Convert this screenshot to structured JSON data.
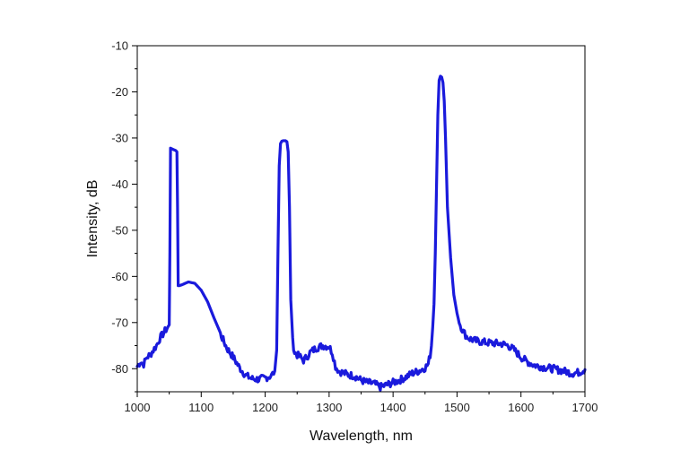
{
  "chart_data": {
    "type": "line",
    "title": "",
    "xlabel": "Wavelength, nm",
    "ylabel": "Intensity, dB",
    "xlim": [
      1000,
      1700
    ],
    "ylim": [
      -85,
      -10
    ],
    "xticks": [
      1000,
      1100,
      1200,
      1300,
      1400,
      1500,
      1600,
      1700
    ],
    "xtick_labels": [
      "1000",
      "1100",
      "1200",
      "1300",
      "1400",
      "1500",
      "1600",
      "1700"
    ],
    "yticks": [
      -80,
      -70,
      -60,
      -50,
      -40,
      -30,
      -20,
      -10
    ],
    "ytick_labels": [
      "-80",
      "-70",
      "-60",
      "-50",
      "-40",
      "-30",
      "-20",
      "-10"
    ],
    "grid": false,
    "series": [
      {
        "name": "spectrum",
        "color": "#1a1adc",
        "x": [
          1000,
          1005,
          1010,
          1015,
          1020,
          1025,
          1030,
          1035,
          1040,
          1045,
          1048,
          1050,
          1051,
          1052,
          1055,
          1058,
          1060,
          1062,
          1063,
          1064,
          1066,
          1070,
          1080,
          1090,
          1100,
          1110,
          1120,
          1130,
          1140,
          1150,
          1160,
          1170,
          1180,
          1190,
          1200,
          1210,
          1215,
          1218,
          1220,
          1222,
          1224,
          1226,
          1228,
          1232,
          1234,
          1236,
          1238,
          1240,
          1243,
          1246,
          1250,
          1255,
          1260,
          1265,
          1270,
          1280,
          1290,
          1300,
          1305,
          1310,
          1315,
          1320,
          1330,
          1340,
          1350,
          1360,
          1370,
          1380,
          1390,
          1400,
          1410,
          1420,
          1430,
          1440,
          1450,
          1455,
          1458,
          1460,
          1462,
          1464,
          1466,
          1468,
          1470,
          1472,
          1474,
          1476,
          1478,
          1480,
          1482,
          1485,
          1490,
          1495,
          1500,
          1505,
          1510,
          1515,
          1520,
          1530,
          1540,
          1550,
          1560,
          1570,
          1580,
          1590,
          1600,
          1610,
          1620,
          1630,
          1640,
          1650,
          1660,
          1670,
          1680,
          1690,
          1700
        ],
        "y": [
          -79.5,
          -78.5,
          -79,
          -77.5,
          -77,
          -76,
          -75,
          -73.5,
          -72.5,
          -71.5,
          -71,
          -70.5,
          -55,
          -32.2,
          -32.4,
          -32.6,
          -32.7,
          -33,
          -45,
          -62,
          -62,
          -61.8,
          -61.2,
          -61.5,
          -63,
          -65.5,
          -69,
          -72.5,
          -75.5,
          -77.5,
          -79.8,
          -81.5,
          -82.2,
          -82.3,
          -82,
          -81.5,
          -80.5,
          -76,
          -55,
          -36,
          -31.2,
          -30.7,
          -30.6,
          -30.6,
          -30.8,
          -33,
          -45,
          -65,
          -74,
          -76.5,
          -77,
          -77.5,
          -78.2,
          -77.5,
          -76.5,
          -75.5,
          -75,
          -75.2,
          -76.5,
          -79.5,
          -80.5,
          -80.8,
          -81.3,
          -81.6,
          -82.5,
          -83,
          -83.2,
          -84,
          -83.5,
          -83,
          -82.5,
          -81.8,
          -81,
          -80.5,
          -79.8,
          -79,
          -77,
          -75,
          -71,
          -66,
          -55,
          -40,
          -25,
          -17.5,
          -16.6,
          -16.8,
          -18,
          -22,
          -30,
          -45,
          -56,
          -64,
          -68,
          -70.5,
          -72,
          -73,
          -73.5,
          -74,
          -74.2,
          -74.4,
          -74.5,
          -74.6,
          -75,
          -76,
          -77.5,
          -78.5,
          -79.2,
          -79.5,
          -79.8,
          -80,
          -80.3,
          -80.6,
          -81,
          -80.8,
          -80.2
        ]
      }
    ]
  }
}
